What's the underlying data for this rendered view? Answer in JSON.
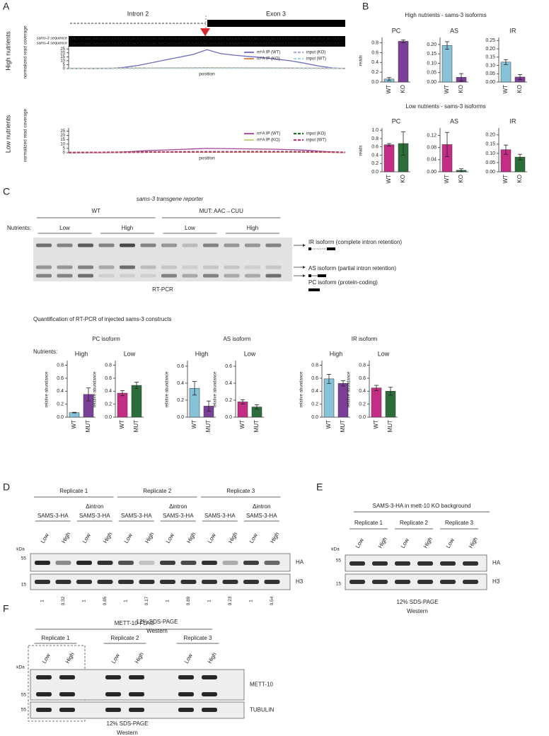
{
  "panel_labels": [
    "A",
    "B",
    "C",
    "D",
    "E",
    "F"
  ],
  "panel_a": {
    "intron_label": "Intron 2",
    "exon_label": "Exon 3",
    "sequence_labels": [
      "sams-3 sequence",
      "sams-4 sequence"
    ],
    "sequences": [
      "GACGCAACAAUAUGUUUCCUUUACCUGUUACAACGGUUACUUUGAUUACAGGAUCUAAAACGGGUAUGAUCAUUGUUGUGCGGUGAGAUCACCUCC",
      "GACGCAACAAUAUGUUUCCUUUACCUGUUACAACGGUUACUUUGAUUACAGGAUCUAAAACGGGUAUGAUCAUUGUUGUGCGGUGAGAUCACCUCC"
    ]
  },
  "panel_b": {
    "titles": [
      "High nutrients - sams-3 isoforms",
      "Low nutrients - sams-3 isoforms"
    ]
  },
  "panel_c": {
    "title": "sams-3 transgene reporter",
    "strains": [
      "WT",
      "MUT: AAC→CUU"
    ],
    "nutrients_label": "Nutrients:",
    "conditions": [
      "Low",
      "High"
    ],
    "isoforms": [
      "IR isoform (complete intron retention)",
      "AS isoform (partial intron retention)",
      "PC isoform (protein-coding)"
    ],
    "method": "RT-PCR",
    "quant_title": "Quantification of RT-PCR of injected sams-3 constructs",
    "quant_groups": [
      "PC isoform",
      "AS isoform",
      "IR isoform"
    ]
  },
  "panel_d": {
    "replicates": [
      "Replicate 1",
      "Replicate 2",
      "Replicate 3"
    ],
    "construct": "SAMS-3-HA",
    "construct_prefix": "Δintron",
    "lanes": [
      "Low",
      "High"
    ],
    "kda_label": "kDa",
    "markers": [
      55,
      15
    ],
    "blots": [
      "HA",
      "H3"
    ],
    "quantification": [
      1,
      0.32,
      1,
      0.85,
      1,
      0.17,
      1,
      0.89,
      1,
      0.23,
      1,
      0.54
    ],
    "gel": "12% SDS-PAGE",
    "method": "Western"
  },
  "panel_e": {
    "title": "SAMS-3-HA in mett-10 KO background",
    "replicates": [
      "Replicate 1",
      "Replicate 2",
      "Replicate 3"
    ],
    "lanes": [
      "Low",
      "High"
    ],
    "kda_label": "kDa",
    "markers": [
      55,
      15
    ],
    "blots": [
      "HA",
      "H3"
    ],
    "gel": "12% SDS-PAGE",
    "method": "Western"
  },
  "panel_f": {
    "title": "METT-10-FLAG",
    "replicates": [
      "Replicate 1",
      "Replicate 2",
      "Replicate 3"
    ],
    "lanes": [
      "Low",
      "High"
    ],
    "kda_label": "kDa",
    "markers": [
      55,
      55
    ],
    "blots": [
      "METT-10",
      "TUBULIN"
    ],
    "gel": "12% SDS-PAGE",
    "method": "Western"
  },
  "chart_data": [
    {
      "type": "line",
      "row_label": "High nutrients",
      "y_label": "normalized read coverage",
      "x_label": "position",
      "ylim": [
        0,
        27
      ],
      "yticks": [
        0,
        5,
        10,
        15,
        20,
        25
      ],
      "series": [
        {
          "name": "m⁶A IP (WT)",
          "color": "#6a6ac0",
          "dashed": false,
          "values": [
            0,
            0,
            0,
            0.3,
            1.5,
            4,
            7.5,
            11,
            14.5,
            18,
            24,
            19,
            17,
            15.5,
            14,
            12,
            10,
            7,
            3.5,
            1,
            0
          ]
        },
        {
          "name": "m⁶A IP (KO)",
          "color": "#e07a3a",
          "dashed": false,
          "values": [
            0.3,
            0.3,
            0.4,
            0.5,
            0.6,
            0.7,
            0.8,
            0.9,
            0.9,
            1,
            1.1,
            1,
            1,
            0.9,
            0.9,
            0.8,
            0.7,
            0.6,
            0.5,
            0.4,
            0.3
          ]
        },
        {
          "name": "input (KO)",
          "color": "#b4a6d6",
          "dashed": true,
          "values": [
            0.2,
            0.2,
            0.3,
            0.3,
            0.4,
            0.4,
            0.5,
            0.5,
            0.5,
            0.6,
            0.6,
            0.6,
            0.6,
            0.6,
            0.5,
            0.5,
            0.5,
            0.4,
            0.3,
            0.3,
            0.2
          ]
        },
        {
          "name": "input (WT)",
          "color": "#9fd8e2",
          "dashed": true,
          "values": [
            0.2,
            0.3,
            0.3,
            0.4,
            0.4,
            0.5,
            0.5,
            0.6,
            0.6,
            0.7,
            0.7,
            0.7,
            0.7,
            0.6,
            0.6,
            0.6,
            0.5,
            0.5,
            0.4,
            0.3,
            0.2
          ]
        }
      ]
    },
    {
      "type": "line",
      "row_label": "Low nutrients",
      "y_label": "normalized read coverage",
      "x_label": "position",
      "ylim": [
        0,
        27
      ],
      "yticks": [
        0,
        5,
        10,
        15,
        20,
        25
      ],
      "series": [
        {
          "name": "m⁶A IP (WT)",
          "color": "#a0449a",
          "dashed": false,
          "values": [
            0,
            0,
            0,
            0.2,
            0.8,
            1.8,
            2.6,
            3.2,
            3.8,
            4.3,
            5,
            4.8,
            4.6,
            4.4,
            4.2,
            4,
            3.6,
            3,
            2,
            0.8,
            0
          ]
        },
        {
          "name": "m⁶A IP (KO)",
          "color": "#b5d56a",
          "dashed": false,
          "values": [
            0.2,
            0.2,
            0.3,
            0.3,
            0.4,
            0.4,
            0.5,
            0.5,
            0.5,
            0.5,
            0.6,
            0.6,
            0.6,
            0.6,
            0.5,
            0.5,
            0.5,
            0.4,
            0.4,
            0.3,
            0.2
          ]
        },
        {
          "name": "input (KO)",
          "color": "#1e6b2a",
          "dashed": true,
          "values": [
            0.2,
            0.3,
            0.4,
            0.5,
            0.6,
            0.7,
            0.8,
            0.9,
            1,
            1,
            1.1,
            1.1,
            1.1,
            1.2,
            1.2,
            1.2,
            1.2,
            1.1,
            1,
            0.8,
            0.5
          ]
        },
        {
          "name": "input (WT)",
          "color": "#c4307a",
          "dashed": true,
          "values": [
            0.2,
            0.3,
            0.4,
            0.5,
            0.6,
            0.6,
            0.7,
            0.8,
            0.9,
            1,
            1,
            1,
            1.1,
            1.1,
            1.1,
            1.1,
            1.1,
            1,
            0.9,
            0.7,
            0.4
          ]
        }
      ]
    },
    {
      "type": "bar",
      "title": "PC",
      "y_label": "reads",
      "categories": [
        "WT",
        "KO"
      ],
      "values": [
        0.06,
        0.83
      ],
      "errors": [
        0.03,
        0.03
      ],
      "colors": [
        "#86c3d9",
        "#7b3f99"
      ],
      "ylim": [
        0,
        0.88
      ],
      "yticks": [
        {
          "value": 0,
          "label": "0.0"
        },
        0.2,
        0.4,
        0.6,
        0.8
      ]
    },
    {
      "type": "bar",
      "title": "AS",
      "categories": [
        "WT",
        "KO"
      ],
      "values": [
        0.195,
        0.025
      ],
      "errors": [
        0.02,
        0.02
      ],
      "colors": [
        "#86c3d9",
        "#7b3f99"
      ],
      "ylim": [
        0,
        0.23
      ],
      "yticks": [
        {
          "value": 0,
          "label": "0.00"
        },
        0.05,
        {
          "value": 0.1,
          "label": "0.10"
        },
        0.15,
        {
          "value": 0.2,
          "label": "0.20"
        }
      ]
    },
    {
      "type": "bar",
      "title": "IR",
      "categories": [
        "WT",
        "KO"
      ],
      "values": [
        0.12,
        0.03
      ],
      "errors": [
        0.015,
        0.015
      ],
      "colors": [
        "#86c3d9",
        "#7b3f99"
      ],
      "ylim": [
        0,
        0.26
      ],
      "yticks": [
        {
          "value": 0,
          "label": "0.00"
        },
        0.05,
        {
          "value": 0.1,
          "label": "0.10"
        },
        0.15,
        {
          "value": 0.2,
          "label": "0.20"
        },
        0.25
      ]
    },
    {
      "type": "bar",
      "title": "PC",
      "y_label": "reads",
      "categories": [
        "WT",
        "KO"
      ],
      "values": [
        0.65,
        0.68
      ],
      "errors": [
        0.03,
        0.28
      ],
      "colors": [
        "#c42d85",
        "#2c6e3a"
      ],
      "ylim": [
        0,
        1.02
      ],
      "yticks": [
        {
          "value": 0,
          "label": "0.0"
        },
        0.2,
        0.4,
        0.6,
        0.8,
        {
          "value": 1,
          "label": "1.0"
        }
      ]
    },
    {
      "type": "bar",
      "title": "AS",
      "categories": [
        "WT",
        "KO"
      ],
      "values": [
        0.09,
        0.005
      ],
      "errors": [
        0.04,
        0.005
      ],
      "colors": [
        "#c42d85",
        "#2c6e3a"
      ],
      "ylim": [
        0,
        0.14
      ],
      "yticks": [
        {
          "value": 0,
          "label": "0.00"
        },
        0.04,
        0.08,
        0.12
      ]
    },
    {
      "type": "bar",
      "title": "IR",
      "categories": [
        "WT",
        "KO"
      ],
      "values": [
        0.12,
        0.08
      ],
      "errors": [
        0.025,
        0.015
      ],
      "colors": [
        "#c42d85",
        "#2c6e3a"
      ],
      "ylim": [
        0,
        0.23
      ],
      "yticks": [
        {
          "value": 0,
          "label": "0.00"
        },
        0.05,
        {
          "value": 0.1,
          "label": "0.10"
        },
        0.15,
        {
          "value": 0.2,
          "label": "0.20"
        }
      ]
    },
    {
      "type": "bar",
      "title": "High",
      "y_label": "relative abundance",
      "categories": [
        "WT",
        "MUT"
      ],
      "values": [
        0.07,
        0.35
      ],
      "errors": [
        0.005,
        0.1
      ],
      "colors": [
        "#86c3d9",
        "#7b3f99"
      ],
      "ylim": [
        0,
        0.85
      ],
      "yticks": [
        {
          "value": 0,
          "label": "0.0"
        },
        0.2,
        0.4,
        0.6,
        0.8
      ]
    },
    {
      "type": "bar",
      "title": "Low",
      "y_label": "relative abundance",
      "categories": [
        "WT",
        "MUT"
      ],
      "values": [
        0.37,
        0.49
      ],
      "errors": [
        0.04,
        0.05
      ],
      "colors": [
        "#c42d85",
        "#2c6e3a"
      ],
      "ylim": [
        0,
        0.85
      ],
      "yticks": [
        {
          "value": 0,
          "label": "0.0"
        },
        0.2,
        0.4,
        0.6,
        0.8
      ]
    },
    {
      "type": "bar",
      "title": "High",
      "y_label": "relative abundance",
      "categories": [
        "WT",
        "MUT"
      ],
      "values": [
        0.34,
        0.13
      ],
      "errors": [
        0.08,
        0.06
      ],
      "colors": [
        "#86c3d9",
        "#7b3f99"
      ],
      "ylim": [
        0,
        0.65
      ],
      "yticks": [
        {
          "value": 0,
          "label": "0.0"
        },
        0.2,
        0.4,
        0.6
      ]
    },
    {
      "type": "bar",
      "title": "Low",
      "y_label": "relative abundance",
      "categories": [
        "WT",
        "MUT"
      ],
      "values": [
        0.18,
        0.12
      ],
      "errors": [
        0.025,
        0.025
      ],
      "colors": [
        "#c42d85",
        "#2c6e3a"
      ],
      "ylim": [
        0,
        0.65
      ],
      "yticks": [
        {
          "value": 0,
          "label": "0.0"
        },
        0.2,
        0.4,
        0.6
      ]
    },
    {
      "type": "bar",
      "title": "High",
      "y_label": "relative abundance",
      "categories": [
        "WT",
        "MUT"
      ],
      "values": [
        0.59,
        0.52
      ],
      "errors": [
        0.07,
        0.04
      ],
      "colors": [
        "#86c3d9",
        "#7b3f99"
      ],
      "ylim": [
        0,
        0.85
      ],
      "yticks": [
        {
          "value": 0,
          "label": "0.0"
        },
        0.2,
        0.4,
        0.6,
        0.8
      ]
    },
    {
      "type": "bar",
      "title": "Low",
      "y_label": "relative abundance",
      "categories": [
        "WT",
        "MUT"
      ],
      "values": [
        0.45,
        0.4
      ],
      "errors": [
        0.04,
        0.06
      ],
      "colors": [
        "#c42d85",
        "#2c6e3a"
      ],
      "ylim": [
        0,
        0.85
      ],
      "yticks": [
        {
          "value": 0,
          "label": "0.0"
        },
        0.2,
        0.4,
        0.6,
        0.8
      ]
    }
  ]
}
